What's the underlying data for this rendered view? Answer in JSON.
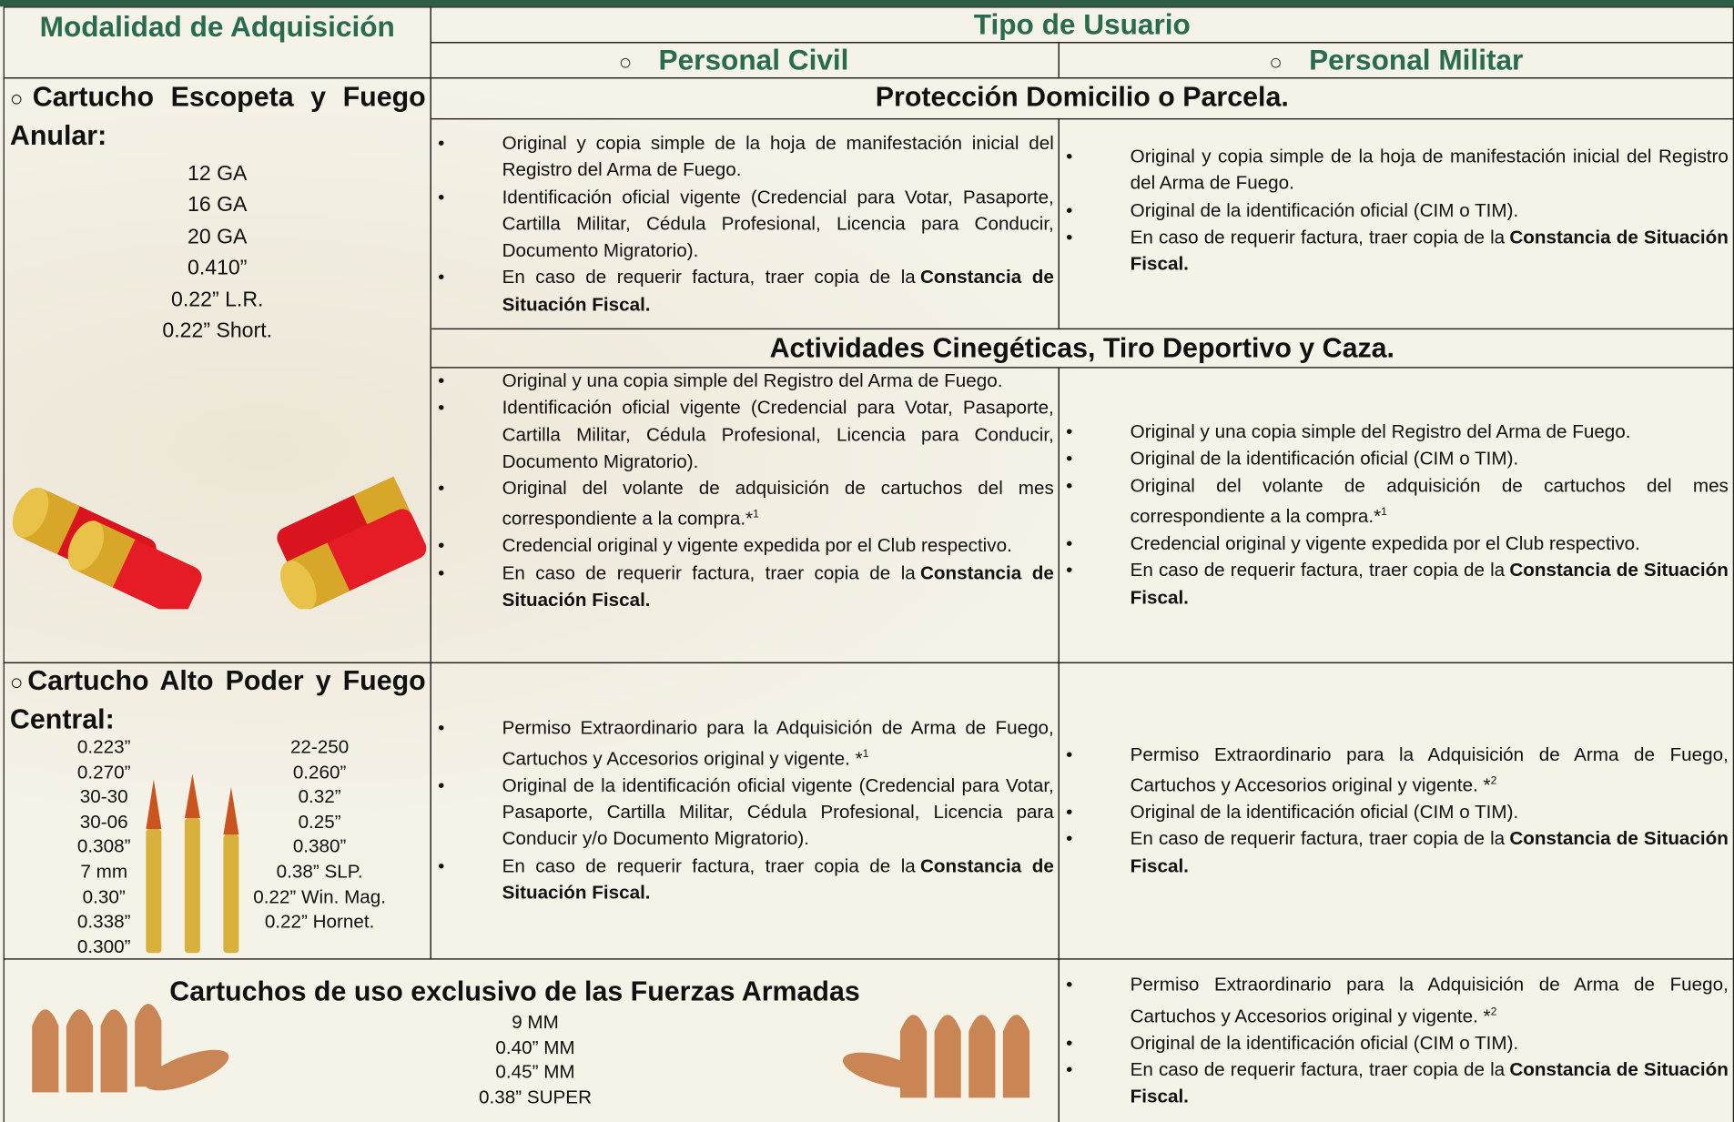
{
  "header": {
    "modalidad": "Modalidad de Adquisición",
    "tipo": "Tipo de Usuario",
    "civil": "Personal Civil",
    "militar": "Personal Militar"
  },
  "escopeta": {
    "heading": "Cartucho Escopeta y Fuego Anular:",
    "calibers": [
      "12 GA",
      "16 GA",
      "20 GA",
      "0.410”",
      "0.22” L.R.",
      "0.22” Short."
    ]
  },
  "proteccion": {
    "title": "Protección Domicilio o Parcela.",
    "civil": [
      {
        "text": "Original y copia simple de la hoja de manifestación inicial del Registro del Arma de Fuego."
      },
      {
        "text": "Identificación oficial vigente (Credencial para Votar, Pasaporte, Cartilla Militar, Cédula Profesional, Licencia para Conducir, Documento Migratorio)."
      },
      {
        "text": "En caso de requerir factura, traer copia de la",
        "bold": "Constancia de Situación Fiscal."
      }
    ],
    "militar": [
      {
        "text": "Original y copia simple de la hoja de manifestación inicial del Registro del Arma de Fuego."
      },
      {
        "text": "Original de la identificación oficial (CIM o TIM)."
      },
      {
        "text": "En caso de requerir factura, traer copia de la",
        "bold": "Constancia de Situación Fiscal."
      }
    ]
  },
  "cinegeticas": {
    "title": "Actividades Cinegéticas, Tiro Deportivo y Caza.",
    "civil": [
      {
        "text": "Original y una copia simple del Registro del Arma de Fuego."
      },
      {
        "text": "Identificación oficial vigente (Credencial para Votar, Pasaporte, Cartilla Militar, Cédula Profesional, Licencia para Conducir, Documento Migratorio)."
      },
      {
        "text": "Original del volante de adquisición de cartuchos del mes correspondiente a la compra.*",
        "sup": "1"
      },
      {
        "text": "Credencial original y vigente expedida por el Club respectivo."
      },
      {
        "text": "En caso de requerir factura, traer copia de la",
        "bold": "Constancia de Situación Fiscal."
      }
    ],
    "militar": [
      {
        "text": "Original y una copia simple del Registro del Arma de Fuego."
      },
      {
        "text": "Original de la identificación oficial (CIM o TIM)."
      },
      {
        "text": "Original del volante de adquisición de cartuchos del mes correspondiente a la compra.*",
        "sup": "1"
      },
      {
        "text": "Credencial original y vigente expedida por el Club respectivo."
      },
      {
        "text": "En caso de requerir factura, traer copia de la",
        "bold": "Constancia de Situación Fiscal."
      }
    ]
  },
  "alto_poder": {
    "heading": "Cartucho Alto Poder y Fuego Central:",
    "calibers_left": [
      "0.223”",
      "0.270”",
      "30-30",
      "30-06",
      "0.308”",
      "7 mm",
      "0.30”",
      "0.338”",
      "0.300”"
    ],
    "calibers_right": [
      "22-250",
      "0.260”",
      "0.32”",
      "0.25”",
      "0.380”",
      "0.38” SLP.",
      "0.22” Win. Mag.",
      "0.22” Hornet."
    ],
    "civil": [
      {
        "text": "Permiso Extraordinario para la Adquisición de Arma de Fuego, Cartuchos y Accesorios original y vigente. *",
        "sup": "1"
      },
      {
        "text": "Original de la identificación oficial vigente (Credencial para Votar, Pasaporte, Cartilla Militar, Cédula Profesional, Licencia para Conducir y/o Documento Migratorio)."
      },
      {
        "text": "En caso de requerir factura, traer copia de la",
        "bold": "Constancia de Situación Fiscal."
      }
    ],
    "militar": [
      {
        "text": "Permiso Extraordinario para la Adquisición de Arma de Fuego, Cartuchos y Accesorios original y vigente. *",
        "sup": "2"
      },
      {
        "text": "Original de la identificación oficial (CIM o TIM)."
      },
      {
        "text": "En caso de requerir factura, traer copia de la",
        "bold": "Constancia de Situación Fiscal."
      }
    ]
  },
  "fuerzas_armadas": {
    "heading": "Cartuchos de uso exclusivo de las Fuerzas Armadas",
    "calibers": [
      "9 MM",
      "0.40” MM",
      "0.45” MM",
      "0.38” SUPER"
    ],
    "militar": [
      {
        "text": "Permiso Extraordinario para la Adquisición de Arma de Fuego, Cartuchos y Accesorios original y vigente. *",
        "sup": "2"
      },
      {
        "text": "Original de la identificación oficial (CIM o TIM)."
      },
      {
        "text": "En caso de requerir factura, traer copia de la",
        "bold": "Constancia de Situación Fiscal."
      }
    ]
  }
}
